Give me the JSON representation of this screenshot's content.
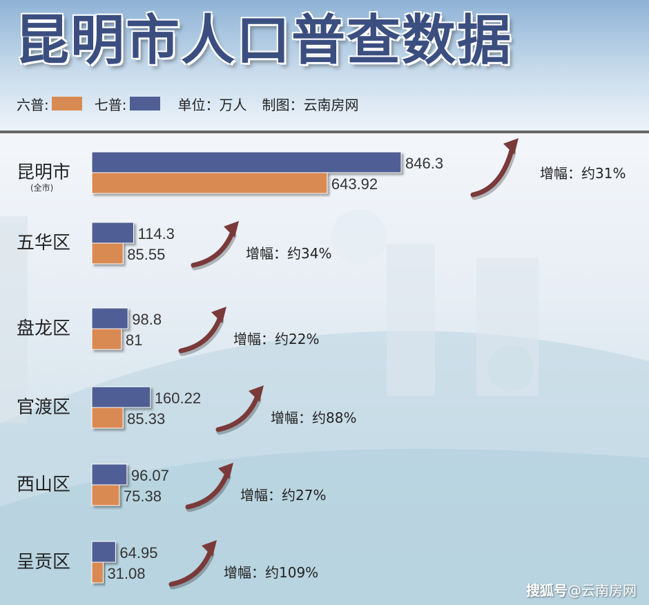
{
  "header": {
    "title": "昆明市人口普查数据",
    "legend": [
      {
        "label": "六普:",
        "color": "#d98a52"
      },
      {
        "label": "七普:",
        "color": "#4f5f95"
      }
    ],
    "unit": "单位：万人",
    "credit": "制图：云南房网"
  },
  "chart_data": {
    "type": "bar",
    "orientation": "horizontal",
    "title": "昆明市人口普查数据",
    "unit": "单位：万人",
    "categories": [
      "昆明市",
      "五华区",
      "盘龙区",
      "官渡区",
      "西山区",
      "呈贡区"
    ],
    "category_notes": [
      "(全市)",
      "",
      "",
      "",
      "",
      ""
    ],
    "series": [
      {
        "name": "七普",
        "color": "#4f5f95",
        "values": [
          846.3,
          114.3,
          98.8,
          160.22,
          96.07,
          64.95
        ],
        "labels": [
          "846.3",
          "114.3",
          "98.8",
          "160.22",
          "96.07",
          "64.95"
        ]
      },
      {
        "name": "六普",
        "color": "#d98a52",
        "values": [
          643.92,
          85.55,
          81,
          85.33,
          75.38,
          31.08
        ],
        "labels": [
          "643.92",
          "85.55",
          "81",
          "85.33",
          "75.38",
          "31.08"
        ]
      }
    ],
    "growth_labels": [
      "增幅：约31%",
      "增幅：约34%",
      "增幅：约22%",
      "增幅：约88%",
      "增幅：约27%",
      "增幅：约109%"
    ],
    "arrow_color": "#7a3a3a"
  },
  "watermark": {
    "logo": "搜狐号",
    "text": "@云南房网"
  }
}
